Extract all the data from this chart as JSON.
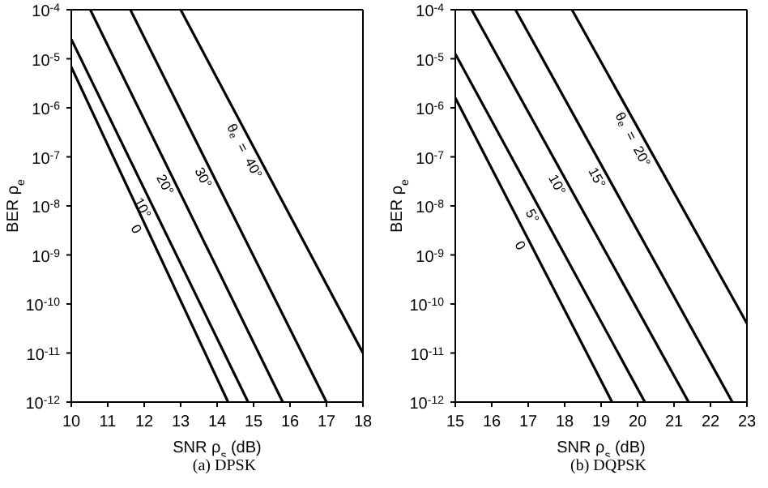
{
  "chart_data": [
    {
      "type": "line",
      "title": "(a) DPSK",
      "xlabel": "SNR ρ$_{s}$ (dB)",
      "ylabel": "BER ρ$_{e}$",
      "log": "y",
      "legend": false,
      "grid": false,
      "marker": "none",
      "line_style": "solid",
      "xlim": [
        10,
        18
      ],
      "xticks": [
        10,
        11,
        12,
        13,
        14,
        15,
        16,
        17,
        18
      ],
      "ylim": [
        1e-12,
        0.0001
      ],
      "yticks": [
        {
          "value": 1e-12,
          "label": "10$^{-12}$"
        },
        {
          "value": 1e-11,
          "label": "10$^{-11}$"
        },
        {
          "value": 1e-10,
          "label": "10$^{-10}$"
        },
        {
          "value": 1e-09,
          "label": "10$^{-9}$"
        },
        {
          "value": 1e-08,
          "label": "10$^{-8}$"
        },
        {
          "value": 1e-07,
          "label": "10$^{-7}$"
        },
        {
          "value": 1e-06,
          "label": "10$^{-6}$"
        },
        {
          "value": 1e-05,
          "label": "10$^{-5}$"
        },
        {
          "value": 0.0001,
          "label": "10$^{-4}$"
        }
      ],
      "series": [
        {
          "color": "#000000",
          "x": [
            10,
            14.3
          ],
          "values": [
            6.8e-06,
            1e-12
          ]
        },
        {
          "color": "#000000",
          "x": [
            10,
            14.85
          ],
          "values": [
            2.5e-05,
            1e-12
          ]
        },
        {
          "color": "#000000",
          "x": [
            10.52,
            15.8
          ],
          "values": [
            0.0001,
            1e-12
          ]
        },
        {
          "color": "#000000",
          "x": [
            11.62,
            17
          ],
          "values": [
            0.0001,
            1e-12
          ]
        },
        {
          "color": "#000000",
          "x": [
            13,
            18
          ],
          "values": [
            0.0001,
            1e-11
          ]
        }
      ],
      "annotations": [
        "0",
        "10°",
        "20°",
        "30°",
        "θ$_{e}$ = 40°"
      ]
    },
    {
      "type": "line",
      "title": "(b) DQPSK",
      "xlabel": "SNR ρ$_{s}$ (dB)",
      "ylabel": "BER ρ$_{e}$",
      "log": "y",
      "legend": false,
      "grid": false,
      "marker": "none",
      "line_style": "solid",
      "xlim": [
        15,
        23
      ],
      "xticks": [
        15,
        16,
        17,
        18,
        19,
        20,
        21,
        22,
        23
      ],
      "ylim": [
        1e-12,
        0.0001
      ],
      "yticks": [
        {
          "value": 1e-12,
          "label": "10$^{-12}$"
        },
        {
          "value": 1e-11,
          "label": "10$^{-11}$"
        },
        {
          "value": 1e-10,
          "label": "10$^{-10}$"
        },
        {
          "value": 1e-09,
          "label": "10$^{-9}$"
        },
        {
          "value": 1e-08,
          "label": "10$^{-8}$"
        },
        {
          "value": 1e-07,
          "label": "10$^{-7}$"
        },
        {
          "value": 1e-06,
          "label": "10$^{-6}$"
        },
        {
          "value": 1e-05,
          "label": "10$^{-5}$"
        },
        {
          "value": 0.0001,
          "label": "10$^{-4}$"
        }
      ],
      "series": [
        {
          "color": "#000000",
          "x": [
            15,
            19.3
          ],
          "values": [
            1.6e-06,
            1e-12
          ]
        },
        {
          "color": "#000000",
          "x": [
            15,
            20.2
          ],
          "values": [
            1.26e-05,
            1e-12
          ]
        },
        {
          "color": "#000000",
          "x": [
            15.45,
            21.4
          ],
          "values": [
            0.0001,
            1e-12
          ]
        },
        {
          "color": "#000000",
          "x": [
            16.65,
            22.6
          ],
          "values": [
            0.0001,
            1e-12
          ]
        },
        {
          "color": "#000000",
          "x": [
            18.2,
            23
          ],
          "values": [
            0.0001,
            4e-11
          ]
        }
      ],
      "annotations": [
        "0",
        "5°",
        "10°",
        "15°",
        "θ$_{e}$ = 20°"
      ]
    }
  ]
}
